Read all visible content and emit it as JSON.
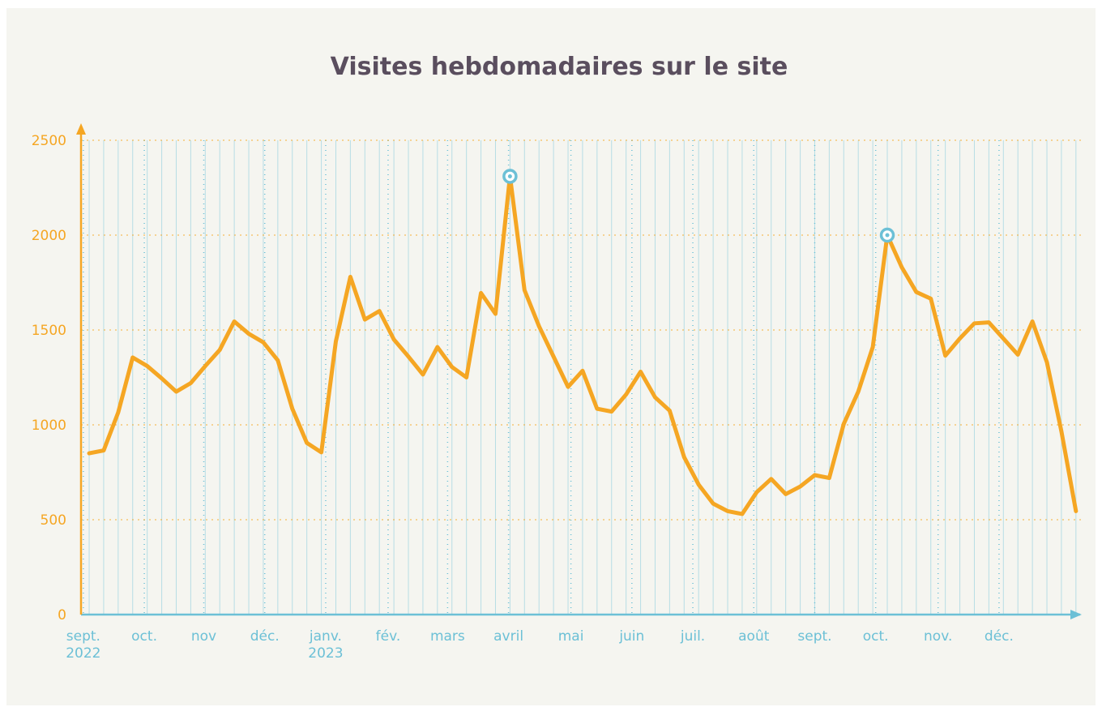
{
  "chart_data": {
    "type": "line",
    "title": "Visites hebdomadaires sur le site",
    "x": [
      0,
      1,
      2,
      3,
      4,
      5,
      6,
      7,
      8,
      9,
      10,
      11,
      12,
      13,
      14,
      15,
      16,
      17,
      18,
      19,
      20,
      21,
      22,
      23,
      24,
      25,
      26,
      27,
      28,
      29,
      30,
      31,
      32,
      33,
      34,
      35,
      36,
      37,
      38,
      39,
      40,
      41,
      42,
      43,
      44,
      45,
      46,
      47,
      48,
      49,
      50,
      51,
      52,
      53,
      54,
      55,
      56,
      57,
      58,
      59,
      60,
      61,
      62,
      63,
      64,
      65,
      66,
      67,
      68
    ],
    "series": [
      {
        "name": "Visites",
        "color": "#f5a623",
        "values": [
          850,
          865,
          1065,
          1355,
          1310,
          1245,
          1175,
          1220,
          1310,
          1395,
          1545,
          1480,
          1435,
          1340,
          1085,
          905,
          855,
          1440,
          1780,
          1555,
          1600,
          1450,
          1360,
          1265,
          1410,
          1305,
          1250,
          1695,
          1585,
          2310,
          1710,
          1520,
          1360,
          1200,
          1285,
          1085,
          1070,
          1160,
          1280,
          1145,
          1075,
          830,
          685,
          585,
          545,
          530,
          645,
          715,
          635,
          675,
          735,
          720,
          1005,
          1175,
          1410,
          2000,
          1830,
          1700,
          1665,
          1365,
          1455,
          1535,
          1540,
          1455,
          1370,
          1545,
          1330,
          965,
          545
        ]
      }
    ],
    "highlight_points": [
      29,
      55
    ],
    "xlim": [
      -0.56,
      68.4
    ],
    "xticks": [
      {
        "value": -0.4,
        "label": "sept.\n2022"
      },
      {
        "value": 3.8,
        "label": "oct."
      },
      {
        "value": 7.9,
        "label": "nov"
      },
      {
        "value": 12.1,
        "label": "déc."
      },
      {
        "value": 16.3,
        "label": "janv.\n2023"
      },
      {
        "value": 20.6,
        "label": "fév."
      },
      {
        "value": 24.7,
        "label": "mars"
      },
      {
        "value": 28.9,
        "label": "avril"
      },
      {
        "value": 33.2,
        "label": "mai"
      },
      {
        "value": 37.4,
        "label": "juin"
      },
      {
        "value": 41.6,
        "label": "juil."
      },
      {
        "value": 45.8,
        "label": "août"
      },
      {
        "value": 50.0,
        "label": "sept."
      },
      {
        "value": 54.2,
        "label": "oct."
      },
      {
        "value": 58.5,
        "label": "nov."
      },
      {
        "value": 62.7,
        "label": "déc."
      }
    ],
    "ylim": [
      0,
      2500
    ],
    "yticks": [
      0,
      500,
      1000,
      1500,
      2000,
      2500
    ],
    "grid": true,
    "x_axis_color": "#6cc0d6",
    "y_axis_color": "#f5a623"
  }
}
